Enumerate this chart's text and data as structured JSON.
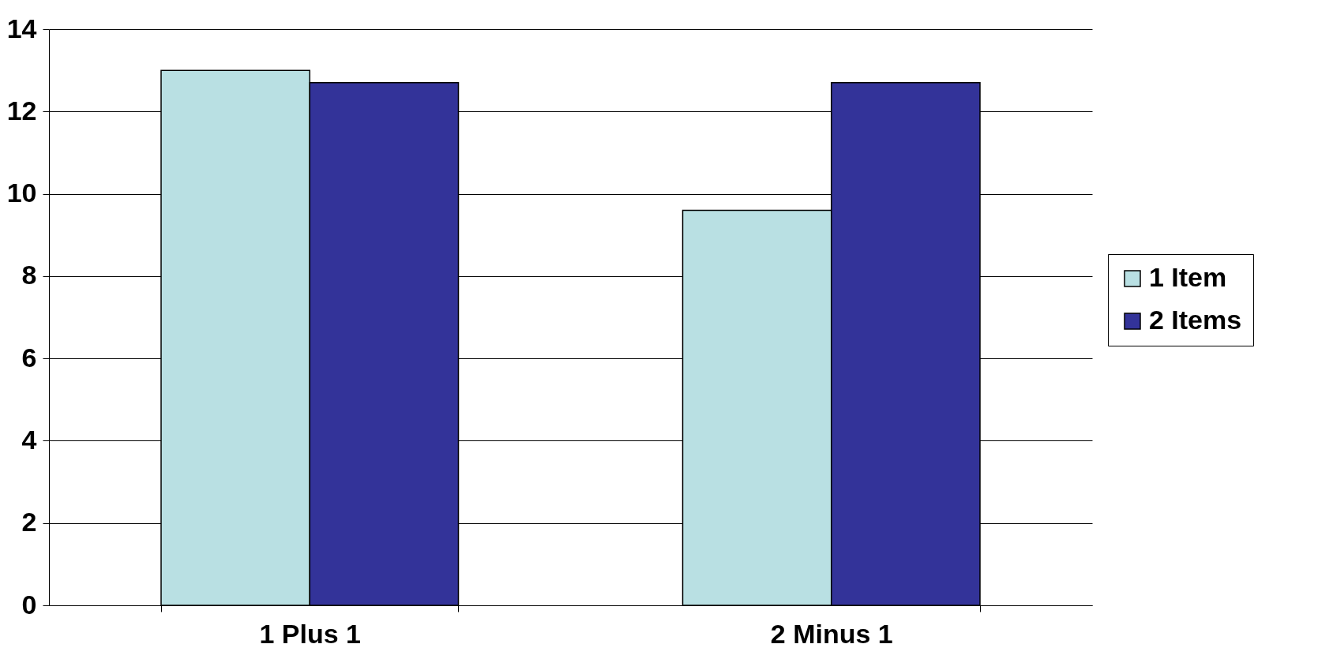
{
  "chart_data": {
    "type": "bar",
    "categories": [
      "1 Plus 1",
      "2 Minus 1"
    ],
    "series": [
      {
        "name": "1 Item",
        "color": "#b9e0e3",
        "values": [
          13,
          9.6
        ]
      },
      {
        "name": "2 Items",
        "color": "#333399",
        "values": [
          12.7,
          12.7
        ]
      }
    ],
    "ylim": [
      0,
      14
    ],
    "yticks": [
      0,
      2,
      4,
      6,
      8,
      10,
      12,
      14
    ],
    "grid": "y",
    "legend": "right"
  }
}
